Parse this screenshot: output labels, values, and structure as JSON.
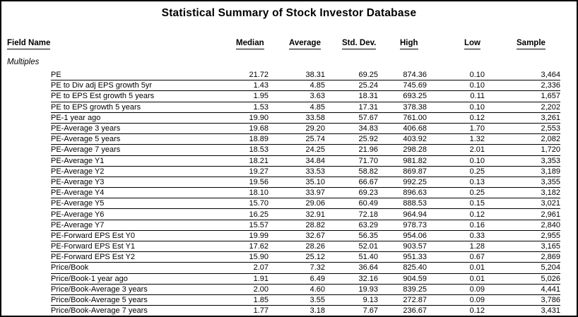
{
  "title": "Statistical Summary of Stock Investor Database",
  "columns": [
    "Field Name",
    "Median",
    "Average",
    "Std. Dev.",
    "High",
    "Low",
    "Sample"
  ],
  "section": "Multiples",
  "colors": {
    "background": "#ffffff",
    "text": "#000000",
    "border": "#000000"
  },
  "rows": [
    {
      "field": "PE",
      "values": [
        "21.72",
        "38.31",
        "69.25",
        "874.36",
        "0.10",
        "3,464"
      ]
    },
    {
      "field": "PE to Div adj EPS growth 5yr",
      "values": [
        "1.43",
        "4.85",
        "25.24",
        "745.69",
        "0.10",
        "2,336"
      ]
    },
    {
      "field": "PE to EPS Est growth 5 years",
      "values": [
        "1.95",
        "3.63",
        "18.31",
        "693.25",
        "0.11",
        "1,657"
      ]
    },
    {
      "field": "PE to EPS growth 5 years",
      "values": [
        "1.53",
        "4.85",
        "17.31",
        "378.38",
        "0.10",
        "2,202"
      ]
    },
    {
      "field": "PE-1 year ago",
      "values": [
        "19.90",
        "33.58",
        "57.67",
        "761.00",
        "0.12",
        "3,261"
      ]
    },
    {
      "field": "PE-Average 3 years",
      "values": [
        "19.68",
        "29.20",
        "34.83",
        "406.68",
        "1.70",
        "2,553"
      ]
    },
    {
      "field": "PE-Average 5 years",
      "values": [
        "18.89",
        "25.74",
        "25.92",
        "403.92",
        "1.32",
        "2,082"
      ]
    },
    {
      "field": "PE-Average 7 years",
      "values": [
        "18.53",
        "24.25",
        "21.96",
        "298.28",
        "2.01",
        "1,720"
      ]
    },
    {
      "field": "PE-Average Y1",
      "values": [
        "18.21",
        "34.84",
        "71.70",
        "981.82",
        "0.10",
        "3,353"
      ]
    },
    {
      "field": "PE-Average Y2",
      "values": [
        "19.27",
        "33.53",
        "58.82",
        "869.87",
        "0.25",
        "3,189"
      ]
    },
    {
      "field": "PE-Average Y3",
      "values": [
        "19.56",
        "35.10",
        "66.67",
        "992.25",
        "0.13",
        "3,355"
      ]
    },
    {
      "field": "PE-Average Y4",
      "values": [
        "18.10",
        "33.97",
        "69.23",
        "896.63",
        "0.25",
        "3,182"
      ]
    },
    {
      "field": "PE-Average Y5",
      "values": [
        "15.70",
        "29.06",
        "60.49",
        "888.53",
        "0.15",
        "3,021"
      ]
    },
    {
      "field": "PE-Average Y6",
      "values": [
        "16.25",
        "32.91",
        "72.18",
        "964.94",
        "0.12",
        "2,961"
      ]
    },
    {
      "field": "PE-Average Y7",
      "values": [
        "15.57",
        "28.82",
        "63.29",
        "978.73",
        "0.16",
        "2,840"
      ]
    },
    {
      "field": "PE-Forward EPS Est Y0",
      "values": [
        "19.99",
        "32.67",
        "56.35",
        "954.06",
        "0.33",
        "2,955"
      ]
    },
    {
      "field": "PE-Forward EPS Est Y1",
      "values": [
        "17.62",
        "28.26",
        "52.01",
        "903.57",
        "1.28",
        "3,165"
      ]
    },
    {
      "field": "PE-Forward EPS Est Y2",
      "values": [
        "15.90",
        "25.12",
        "51.40",
        "951.33",
        "0.67",
        "2,869"
      ]
    },
    {
      "field": "Price/Book",
      "values": [
        "2.07",
        "7.32",
        "36.64",
        "825.40",
        "0.01",
        "5,204"
      ]
    },
    {
      "field": "Price/Book-1 year ago",
      "values": [
        "1.91",
        "6.49",
        "32.16",
        "904.59",
        "0.01",
        "5,026"
      ]
    },
    {
      "field": "Price/Book-Average 3 years",
      "values": [
        "2.00",
        "4.60",
        "19.93",
        "839.25",
        "0.09",
        "4,441"
      ]
    },
    {
      "field": "Price/Book-Average 5 years",
      "values": [
        "1.85",
        "3.55",
        "9.13",
        "272.87",
        "0.09",
        "3,786"
      ]
    },
    {
      "field": "Price/Book-Average 7 years",
      "values": [
        "1.77",
        "3.18",
        "7.67",
        "236.67",
        "0.12",
        "3,431"
      ]
    }
  ]
}
